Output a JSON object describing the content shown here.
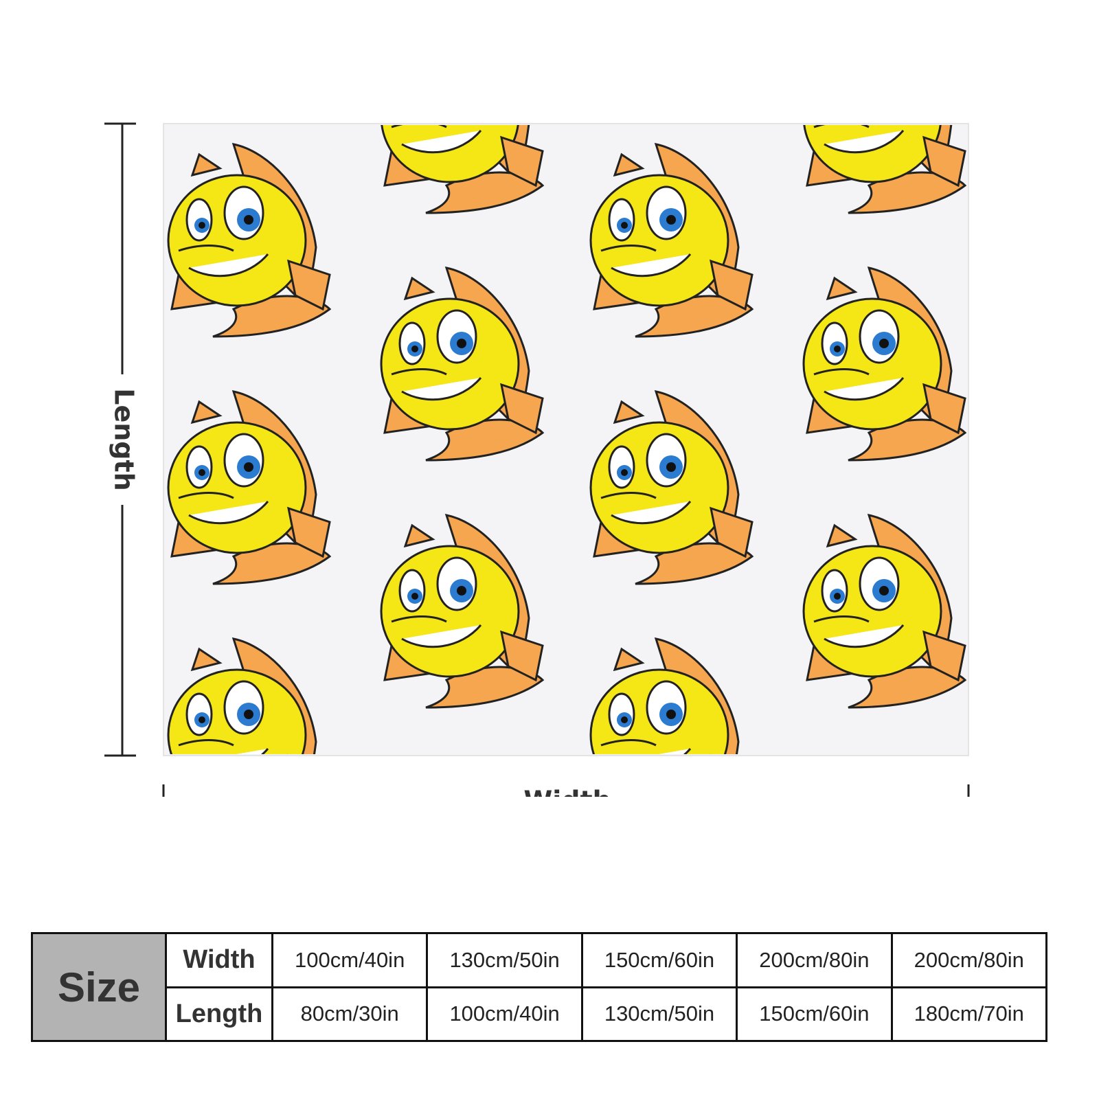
{
  "dimensions": {
    "length_label": "Length",
    "width_label": "Width"
  },
  "table": {
    "size_label": "Size",
    "rows": [
      {
        "label": "Width",
        "cells": [
          "100cm/40in",
          "130cm/50in",
          "150cm/60in",
          "200cm/80in",
          "200cm/80in"
        ]
      },
      {
        "label": "Length",
        "cells": [
          "80cm/30in",
          "100cm/40in",
          "130cm/50in",
          "150cm/60in",
          "180cm/70in"
        ]
      }
    ]
  }
}
